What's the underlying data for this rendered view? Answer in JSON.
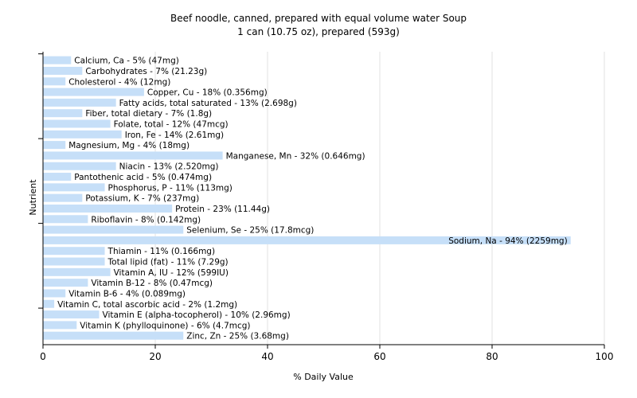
{
  "chart_data": {
    "type": "bar",
    "orientation": "horizontal",
    "title": "Beef noodle, canned, prepared with equal volume water Soup",
    "subtitle": "1 can (10.75 oz), prepared (593g)",
    "xlabel": "% Daily Value",
    "ylabel": "Nutrient",
    "xlim": [
      0,
      100
    ],
    "xticks": [
      "0",
      "20",
      "40",
      "60",
      "80",
      "100"
    ],
    "grid": true,
    "bar_color": "#c6dff8",
    "categories": [
      "Calcium, Ca",
      "Carbohydrates",
      "Cholesterol",
      "Copper, Cu",
      "Fatty acids, total saturated",
      "Fiber, total dietary",
      "Folate, total",
      "Iron, Fe",
      "Magnesium, Mg",
      "Manganese, Mn",
      "Niacin",
      "Pantothenic acid",
      "Phosphorus, P",
      "Potassium, K",
      "Protein",
      "Riboflavin",
      "Selenium, Se",
      "Sodium, Na",
      "Thiamin",
      "Total lipid (fat)",
      "Vitamin A, IU",
      "Vitamin B-12",
      "Vitamin B-6",
      "Vitamin C, total ascorbic acid",
      "Vitamin E (alpha-tocopherol)",
      "Vitamin K (phylloquinone)",
      "Zinc, Zn"
    ],
    "values": [
      5,
      7,
      4,
      18,
      13,
      7,
      12,
      14,
      4,
      32,
      13,
      5,
      11,
      7,
      23,
      8,
      25,
      94,
      11,
      11,
      12,
      8,
      4,
      2,
      10,
      6,
      25
    ],
    "labels": [
      "Calcium, Ca - 5% (47mg)",
      "Carbohydrates - 7% (21.23g)",
      "Cholesterol - 4% (12mg)",
      "Copper, Cu - 18% (0.356mg)",
      "Fatty acids, total saturated - 13% (2.698g)",
      "Fiber, total dietary - 7% (1.8g)",
      "Folate, total - 12% (47mcg)",
      "Iron, Fe - 14% (2.61mg)",
      "Magnesium, Mg - 4% (18mg)",
      "Manganese, Mn - 32% (0.646mg)",
      "Niacin - 13% (2.520mg)",
      "Pantothenic acid - 5% (0.474mg)",
      "Phosphorus, P - 11% (113mg)",
      "Potassium, K - 7% (237mg)",
      "Protein - 23% (11.44g)",
      "Riboflavin - 8% (0.142mg)",
      "Selenium, Se - 25% (17.8mcg)",
      "Sodium, Na - 94% (2259mg)",
      "Thiamin - 11% (0.166mg)",
      "Total lipid (fat) - 11% (7.29g)",
      "Vitamin A, IU - 12% (599IU)",
      "Vitamin B-12 - 8% (0.47mcg)",
      "Vitamin B-6 - 4% (0.089mg)",
      "Vitamin C, total ascorbic acid - 2% (1.2mg)",
      "Vitamin E (alpha-tocopherol) - 10% (2.96mg)",
      "Vitamin K (phylloquinone) - 6% (4.7mcg)",
      "Zinc, Zn - 25% (3.68mg)"
    ]
  }
}
